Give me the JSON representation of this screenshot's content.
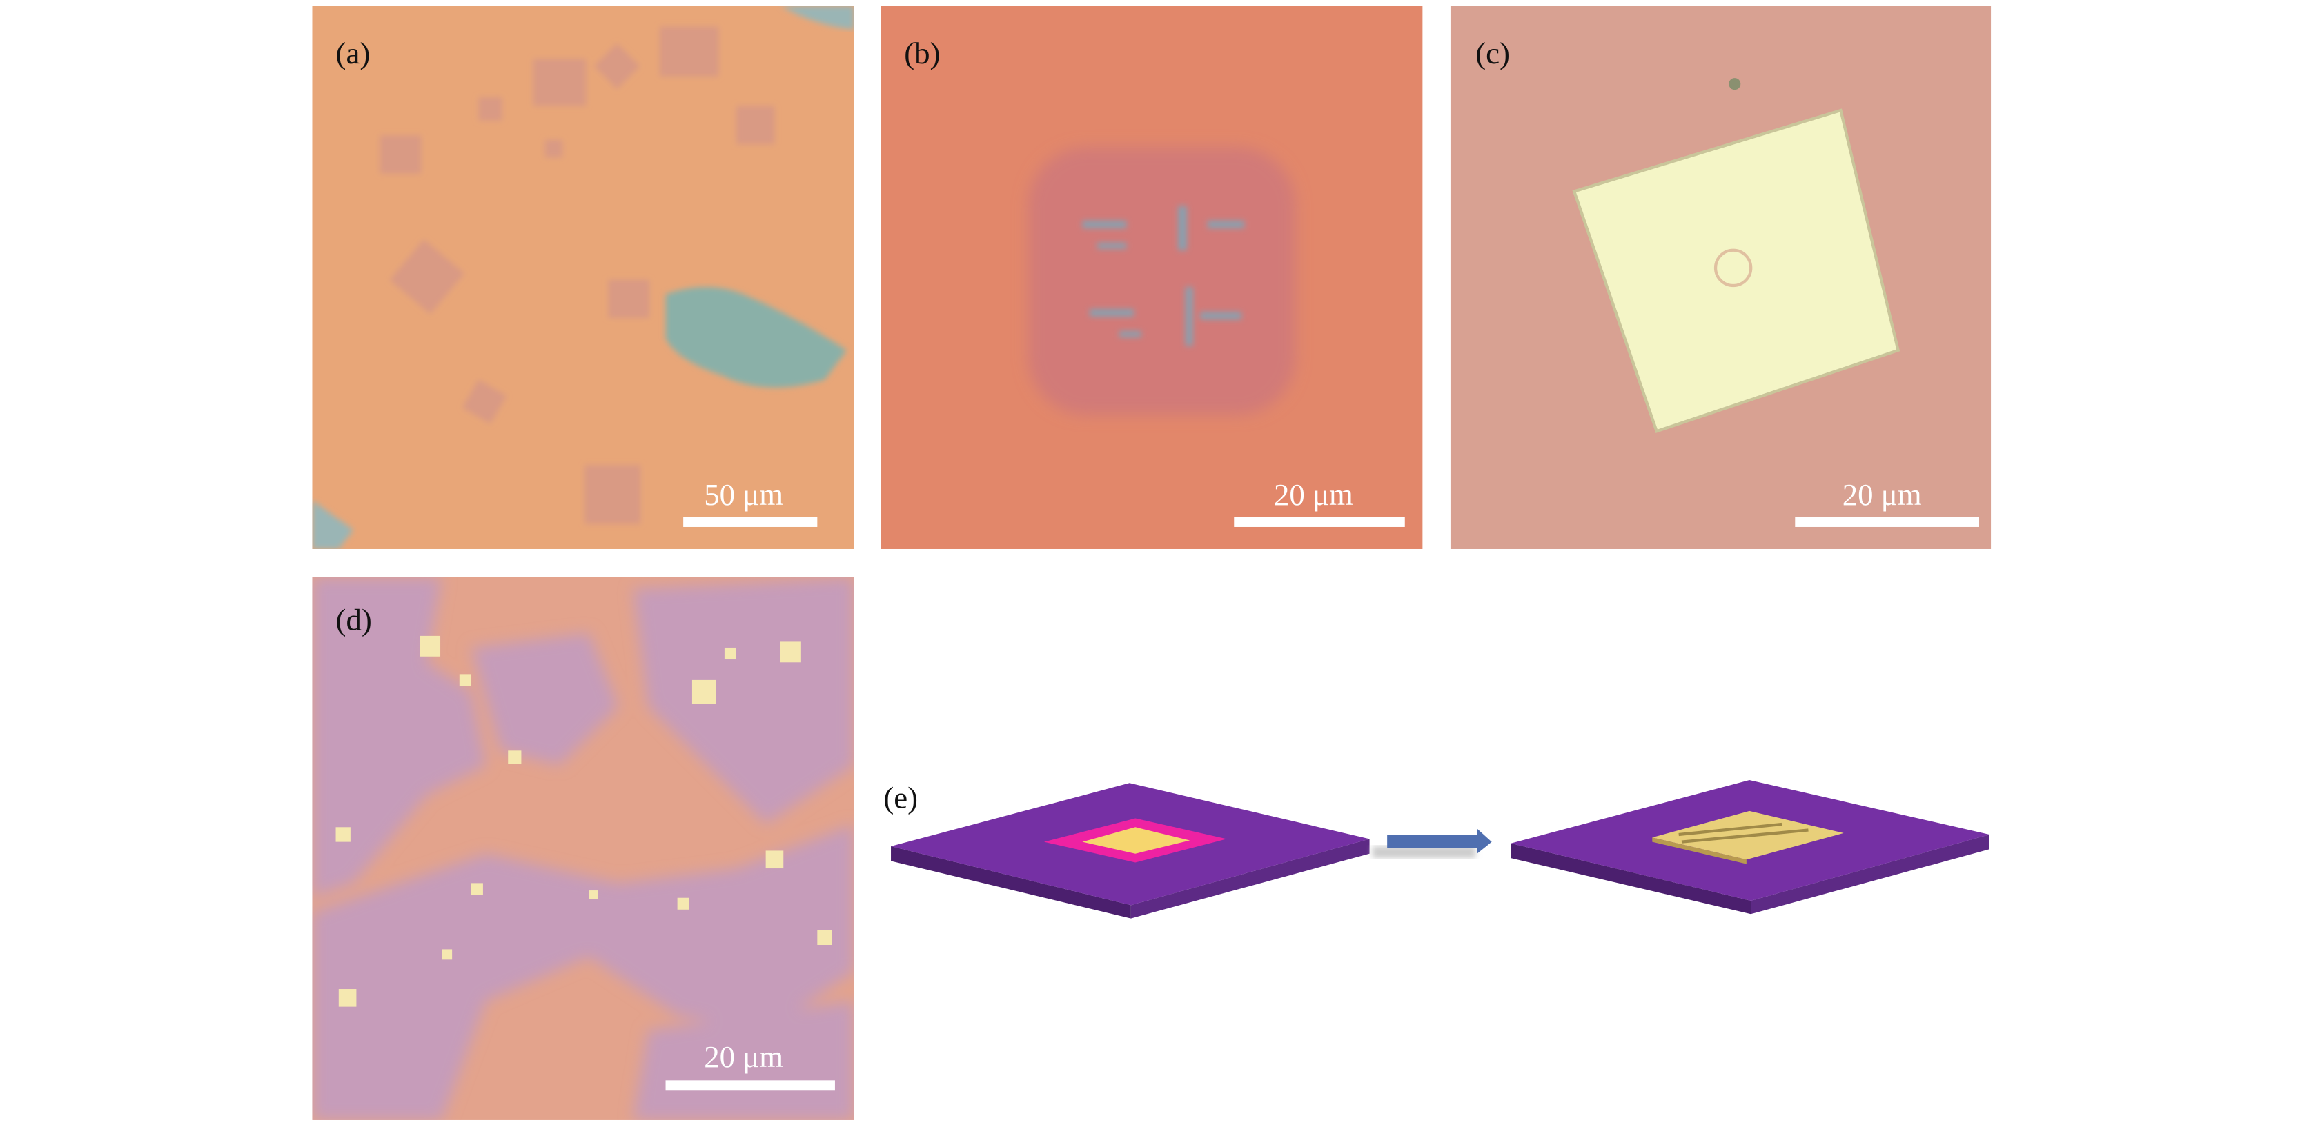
{
  "panels": [
    {
      "label": "(a)",
      "scale_bar": "50 μm"
    },
    {
      "label": "(b)",
      "scale_bar": "20 μm"
    },
    {
      "label": "(c)",
      "scale_bar": "20 μm"
    },
    {
      "label": "(d)",
      "scale_bar": "20 μm"
    },
    {
      "label": "(e)"
    }
  ]
}
